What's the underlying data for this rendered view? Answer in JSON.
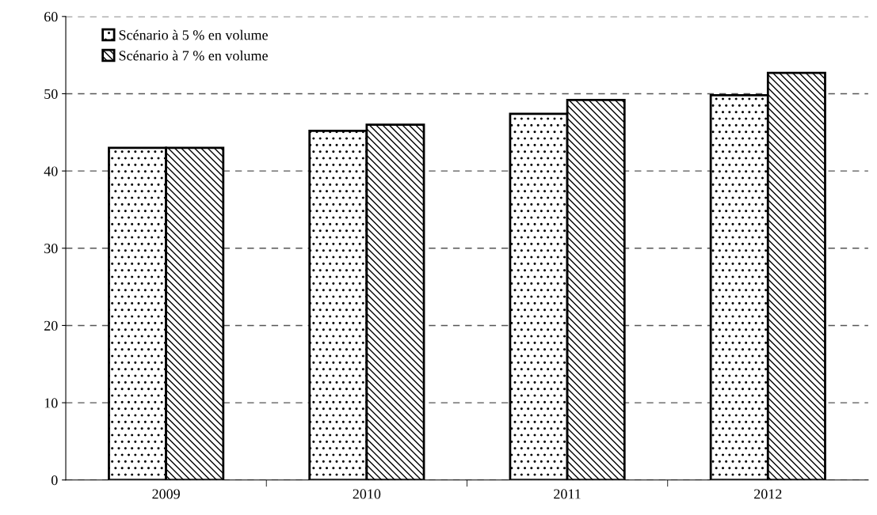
{
  "chart_data": {
    "type": "bar",
    "categories": [
      "2009",
      "2010",
      "2011",
      "2012"
    ],
    "series": [
      {
        "name": "Scénario à 5 % en volume",
        "color": "#000000",
        "values": [
          43.0,
          45.2,
          47.4,
          49.8
        ]
      },
      {
        "name": "Scénario à 7 % en volume",
        "color": "#000000",
        "values": [
          43.0,
          46.0,
          49.2,
          52.7
        ]
      }
    ],
    "ylim": [
      0,
      60
    ],
    "yticks": [
      0,
      10,
      20,
      30,
      40,
      50,
      60
    ],
    "grid": "y",
    "legend": "top left"
  }
}
